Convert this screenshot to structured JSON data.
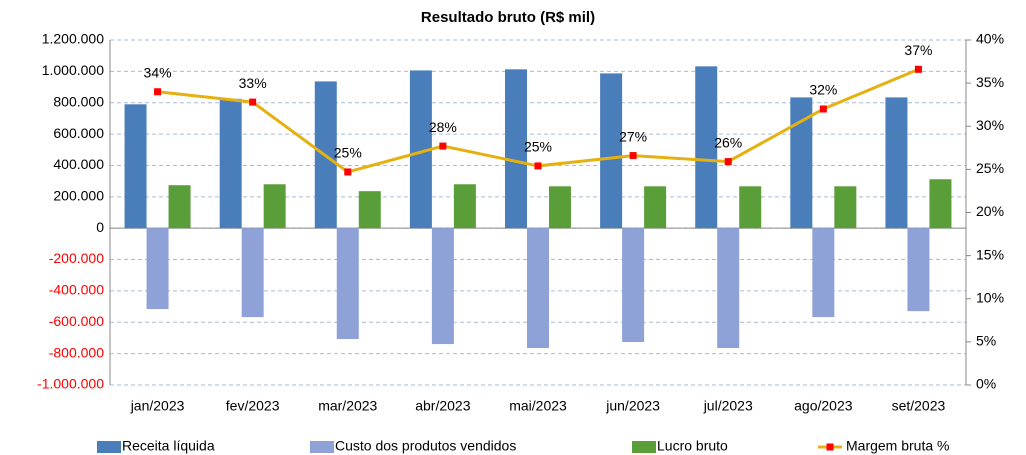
{
  "chart_data": {
    "type": "bar-line",
    "title": "Resultado bruto (R$ mil)",
    "categories": [
      "jan/2023",
      "fev/2023",
      "mar/2023",
      "abr/2023",
      "mai/2023",
      "jun/2023",
      "jul/2023",
      "ago/2023",
      "set/2023"
    ],
    "series": [
      {
        "name": "Receita líquida",
        "type": "bar",
        "color": "#4a7ebb",
        "values": [
          790000,
          825000,
          936000,
          1006000,
          1013000,
          987000,
          1032000,
          834000,
          834000
        ]
      },
      {
        "name": "Custo dos produtos vendidos",
        "type": "bar",
        "color": "#8ea2d8",
        "values": [
          -516000,
          -567000,
          -707000,
          -739000,
          -764000,
          -726000,
          -764000,
          -567000,
          -529000
        ]
      },
      {
        "name": "Lucro bruto",
        "type": "bar",
        "color": "#5a9e3a",
        "values": [
          274000,
          280000,
          236000,
          280000,
          267000,
          267000,
          267000,
          267000,
          312000
        ]
      },
      {
        "name": "Margem bruta %",
        "type": "line",
        "axis": "y2",
        "color": "#e6b010",
        "marker_color": "#ff0000",
        "values": [
          34.0,
          32.8,
          24.7,
          27.7,
          25.4,
          26.6,
          25.9,
          32.0,
          36.6
        ],
        "value_labels": [
          "34%",
          "33%",
          "25%",
          "28%",
          "25%",
          "27%",
          "26%",
          "32%",
          "37%"
        ]
      }
    ],
    "ylim": [
      -1000000,
      1200000
    ],
    "yticks": [
      {
        "value": -1000000,
        "label": "-1.000.000"
      },
      {
        "value": -800000,
        "label": "-800.000"
      },
      {
        "value": -600000,
        "label": "-600.000"
      },
      {
        "value": -400000,
        "label": "-400.000"
      },
      {
        "value": -200000,
        "label": "-200.000"
      },
      0,
      {
        "value": 200000,
        "label": "200.000"
      },
      {
        "value": 400000,
        "label": "400.000"
      },
      {
        "value": 600000,
        "label": "600.000"
      },
      {
        "value": 800000,
        "label": "800.000"
      },
      {
        "value": 1000000,
        "label": "1.000.000"
      },
      {
        "value": 1200000,
        "label": "1.200.000"
      }
    ],
    "y2lim": [
      0,
      40
    ],
    "y2ticks": [
      {
        "value": 0,
        "label": "0%"
      },
      {
        "value": 5,
        "label": "5%"
      },
      {
        "value": 10,
        "label": "10%"
      },
      {
        "value": 15,
        "label": "15%"
      },
      {
        "value": 20,
        "label": "20%"
      },
      {
        "value": 25,
        "label": "25%"
      },
      {
        "value": 30,
        "label": "30%"
      },
      {
        "value": 35,
        "label": "35%"
      },
      {
        "value": 40,
        "label": "40%"
      }
    ],
    "negative_tick_color": "#ff0000",
    "grid": true,
    "legend": "bottom"
  }
}
